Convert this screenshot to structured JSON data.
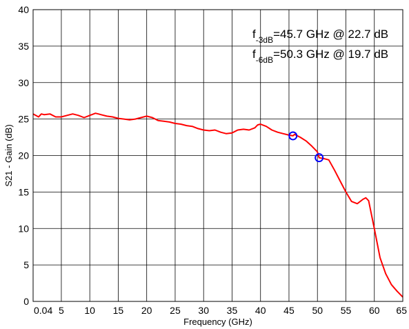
{
  "chart_data": {
    "type": "line",
    "xlabel": "Frequency (GHz)",
    "ylabel": "S21 - Gain (dB)",
    "xlim": [
      0.04,
      65
    ],
    "ylim": [
      0,
      40
    ],
    "x_ticks": [
      "0.04",
      "5",
      "10",
      "15",
      "20",
      "25",
      "30",
      "35",
      "40",
      "45",
      "50",
      "55",
      "60",
      "65"
    ],
    "y_ticks": [
      "0",
      "5",
      "10",
      "15",
      "20",
      "25",
      "30",
      "35",
      "40"
    ],
    "grid": true,
    "series": [
      {
        "color": "#ff0000",
        "x": [
          0.04,
          0.5,
          1,
          1.5,
          2,
          3,
          4,
          5,
          6,
          7,
          8,
          9,
          10,
          11,
          11.5,
          12,
          13,
          14,
          15,
          16,
          17,
          18,
          19,
          20,
          21,
          22,
          23,
          24,
          25,
          26,
          27,
          28,
          29,
          30,
          31,
          32,
          33,
          34,
          35,
          36,
          37,
          38,
          39,
          39.5,
          40,
          41,
          42,
          43,
          44,
          45,
          45.7,
          46,
          47,
          48,
          49,
          50,
          50.3,
          51,
          52,
          53,
          54,
          55,
          56,
          57,
          58,
          58.5,
          59,
          60,
          61,
          62,
          63,
          64,
          65
        ],
        "y": [
          25.7,
          25.5,
          25.3,
          25.7,
          25.6,
          25.7,
          25.3,
          25.3,
          25.5,
          25.7,
          25.5,
          25.2,
          25.5,
          25.8,
          25.7,
          25.6,
          25.4,
          25.3,
          25.1,
          25.0,
          24.9,
          25.0,
          25.2,
          25.4,
          25.2,
          24.8,
          24.7,
          24.6,
          24.4,
          24.3,
          24.1,
          24.0,
          23.7,
          23.5,
          23.4,
          23.5,
          23.2,
          23.0,
          23.1,
          23.5,
          23.6,
          23.5,
          23.8,
          24.2,
          24.3,
          24.0,
          23.5,
          23.2,
          23.0,
          22.8,
          22.7,
          22.9,
          22.5,
          22.0,
          21.3,
          20.5,
          19.7,
          19.6,
          19.4,
          18.0,
          16.5,
          15.0,
          13.7,
          13.4,
          14.0,
          14.2,
          13.8,
          10.0,
          6.0,
          3.8,
          2.3,
          1.4,
          0.6
        ]
      }
    ],
    "markers": [
      {
        "x": 45.7,
        "y": 22.7,
        "color": "#0000ff"
      },
      {
        "x": 50.3,
        "y": 19.7,
        "color": "#0000ff"
      }
    ],
    "annotations": [
      {
        "main": "f",
        "sub": "-3dB",
        "rest": "=45.7 GHz @ 22.7 dB"
      },
      {
        "main": "f",
        "sub": "-6dB",
        "rest": "=50.3 GHz @ 19.7 dB"
      }
    ]
  }
}
